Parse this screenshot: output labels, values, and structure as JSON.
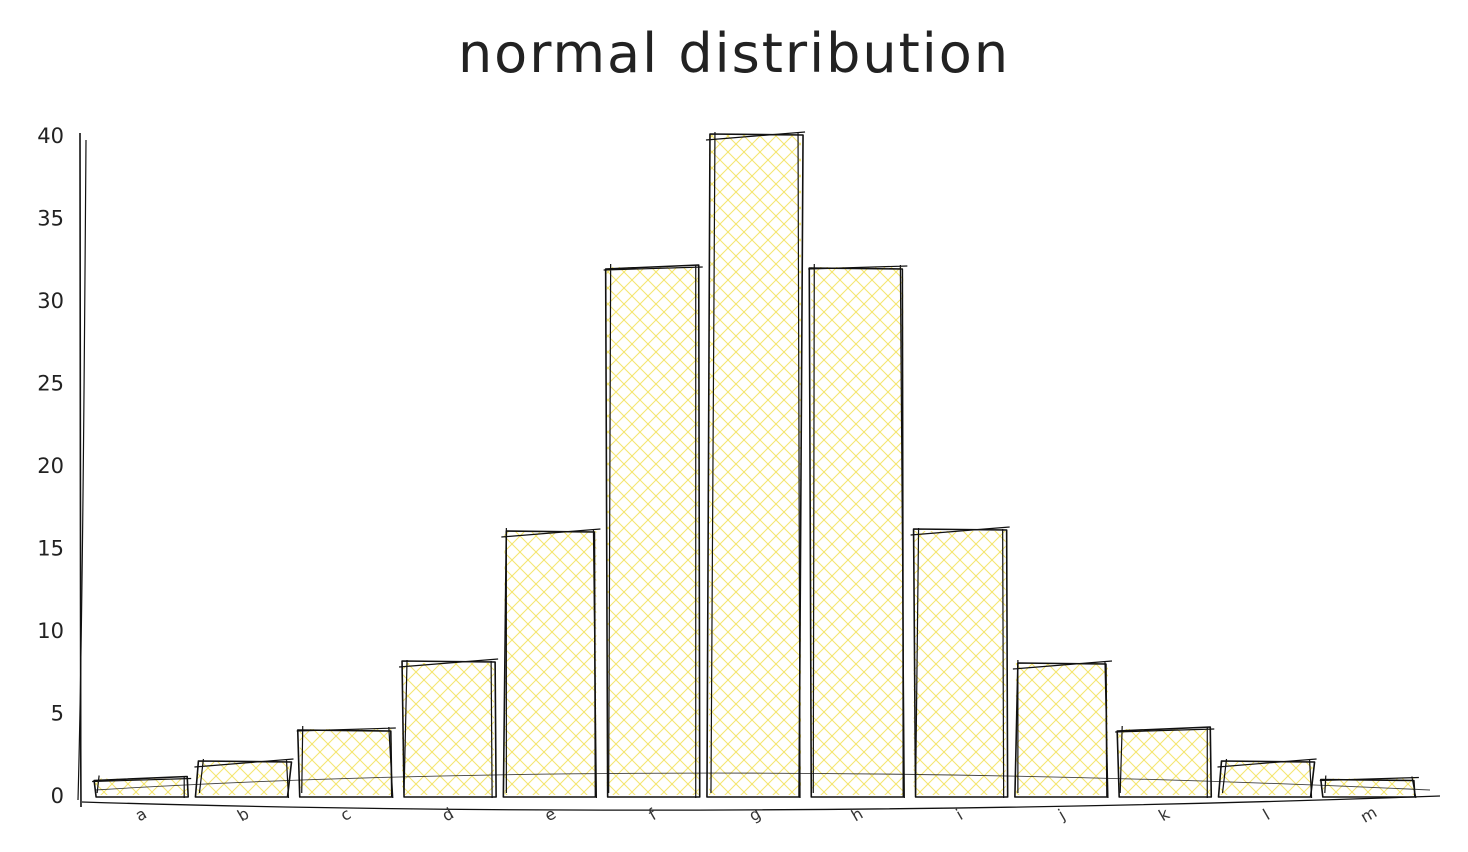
{
  "chart_data": {
    "type": "bar",
    "title": "normal distribution",
    "xlabel": "",
    "ylabel": "",
    "categories": [
      "a",
      "b",
      "c",
      "d",
      "e",
      "f",
      "g",
      "h",
      "i",
      "j",
      "k",
      "l",
      "m"
    ],
    "values": [
      1,
      2,
      4,
      8,
      16,
      32,
      40,
      32,
      16,
      8,
      4,
      2,
      1
    ],
    "ylim": [
      0,
      40
    ],
    "yticks": [
      0,
      5,
      10,
      15,
      20,
      25,
      30,
      35,
      40
    ],
    "grid": false,
    "legend": "none",
    "style": "hand-drawn sketch",
    "colors": {
      "fill": "#f5e663",
      "stroke": "#111111"
    }
  }
}
